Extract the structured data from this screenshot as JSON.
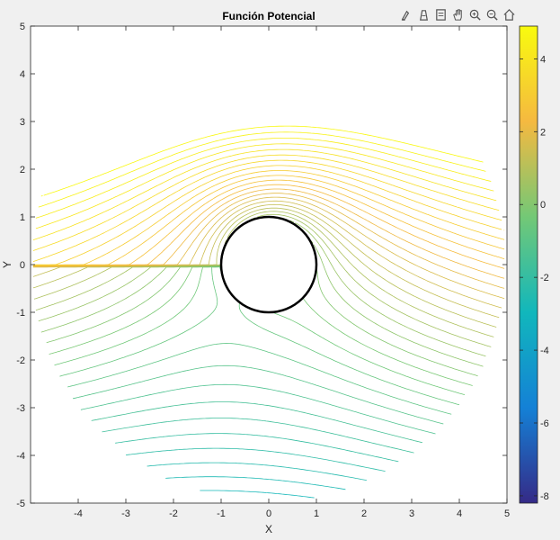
{
  "chart_data": {
    "type": "line",
    "subtype": "contour",
    "title": "Función Potencial",
    "xlabel": "X",
    "ylabel": "Y",
    "xlim": [
      -5,
      5
    ],
    "ylim": [
      -5,
      5
    ],
    "xticks": [
      -4,
      -3,
      -2,
      -1,
      0,
      1,
      2,
      3,
      4,
      5
    ],
    "yticks": [
      -5,
      -4,
      -3,
      -2,
      -1,
      0,
      1,
      2,
      3,
      4,
      5
    ],
    "grid": false,
    "colormap": "parula",
    "colorbar": {
      "limits": [
        -8.2,
        4.9
      ],
      "ticks": [
        -8,
        -6,
        -4,
        -2,
        0,
        2,
        4
      ],
      "tick_labels": [
        "-8",
        "-6",
        "-4",
        "-2",
        "0",
        "2",
        "4"
      ]
    },
    "cylinder": {
      "center": [
        0,
        0
      ],
      "radius": 1,
      "fill": "#ffffff",
      "edge": "#000000"
    },
    "domain_radius": 5,
    "contour_levels": 60,
    "field": "stream function of uniform flow past a cylinder with vortex; levels clipped to r <= 5"
  },
  "toolbar": {
    "icons": [
      "brush-icon",
      "export-icon",
      "data-tips-icon",
      "pan-icon",
      "zoom-in-icon",
      "zoom-out-icon",
      "home-icon"
    ]
  }
}
